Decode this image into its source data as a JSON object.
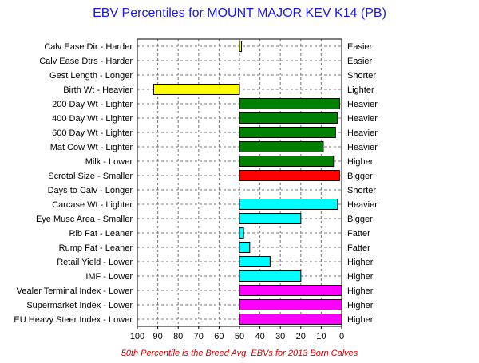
{
  "chart_data": {
    "type": "bar",
    "title": "EBV Percentiles for MOUNT MAJOR KEV K14 (PB)",
    "footnote": "50th Percentile is the Breed Avg. EBVs for 2013 Born Calves",
    "xlim": [
      100,
      0
    ],
    "x_ticks": [
      "100",
      "90",
      "80",
      "70",
      "60",
      "50",
      "40",
      "30",
      "20",
      "10",
      "0"
    ],
    "grid": true,
    "baseline": 50,
    "rows": [
      {
        "left": "Calv Ease Dir - Harder",
        "right": "Easier",
        "percentile": 49,
        "color": "#ffff00"
      },
      {
        "left": "Calv Ease Dtrs - Harder",
        "right": "Easier",
        "percentile": null,
        "color": null
      },
      {
        "left": "Gest Length - Longer",
        "right": "Shorter",
        "percentile": null,
        "color": null
      },
      {
        "left": "Birth Wt - Heavier",
        "right": "Lighter",
        "percentile": 92,
        "color": "#ffff00"
      },
      {
        "left": "200 Day Wt - Lighter",
        "right": "Heavier",
        "percentile": 1,
        "color": "#008000"
      },
      {
        "left": "400 Day Wt - Lighter",
        "right": "Heavier",
        "percentile": 2,
        "color": "#008000"
      },
      {
        "left": "600 Day Wt - Lighter",
        "right": "Heavier",
        "percentile": 3,
        "color": "#008000"
      },
      {
        "left": "Mat Cow Wt - Lighter",
        "right": "Heavier",
        "percentile": 9,
        "color": "#008000"
      },
      {
        "left": "Milk - Lower",
        "right": "Higher",
        "percentile": 4,
        "color": "#008000"
      },
      {
        "left": "Scrotal Size - Smaller",
        "right": "Bigger",
        "percentile": 1,
        "color": "#ff0000"
      },
      {
        "left": "Days to Calv - Longer",
        "right": "Shorter",
        "percentile": null,
        "color": null
      },
      {
        "left": "Carcase Wt - Lighter",
        "right": "Heavier",
        "percentile": 2,
        "color": "#00ffff"
      },
      {
        "left": "Eye Musc Area - Smaller",
        "right": "Bigger",
        "percentile": 20,
        "color": "#00ffff"
      },
      {
        "left": "Rib Fat - Leaner",
        "right": "Fatter",
        "percentile": 48,
        "color": "#00ffff"
      },
      {
        "left": "Rump Fat - Leaner",
        "right": "Fatter",
        "percentile": 45,
        "color": "#00ffff"
      },
      {
        "left": "Retail Yield - Lower",
        "right": "Higher",
        "percentile": 35,
        "color": "#00ffff"
      },
      {
        "left": "IMF - Lower",
        "right": "Higher",
        "percentile": 20,
        "color": "#00ffff"
      },
      {
        "left": "Vealer Terminal Index - Lower",
        "right": "Higher",
        "percentile": 0,
        "color": "#ff00ff"
      },
      {
        "left": "Supermarket Index - Lower",
        "right": "Higher",
        "percentile": 0,
        "color": "#ff00ff"
      },
      {
        "left": "EU Heavy Steer Index - Lower",
        "right": "Higher",
        "percentile": 0,
        "color": "#ff00ff"
      }
    ]
  }
}
